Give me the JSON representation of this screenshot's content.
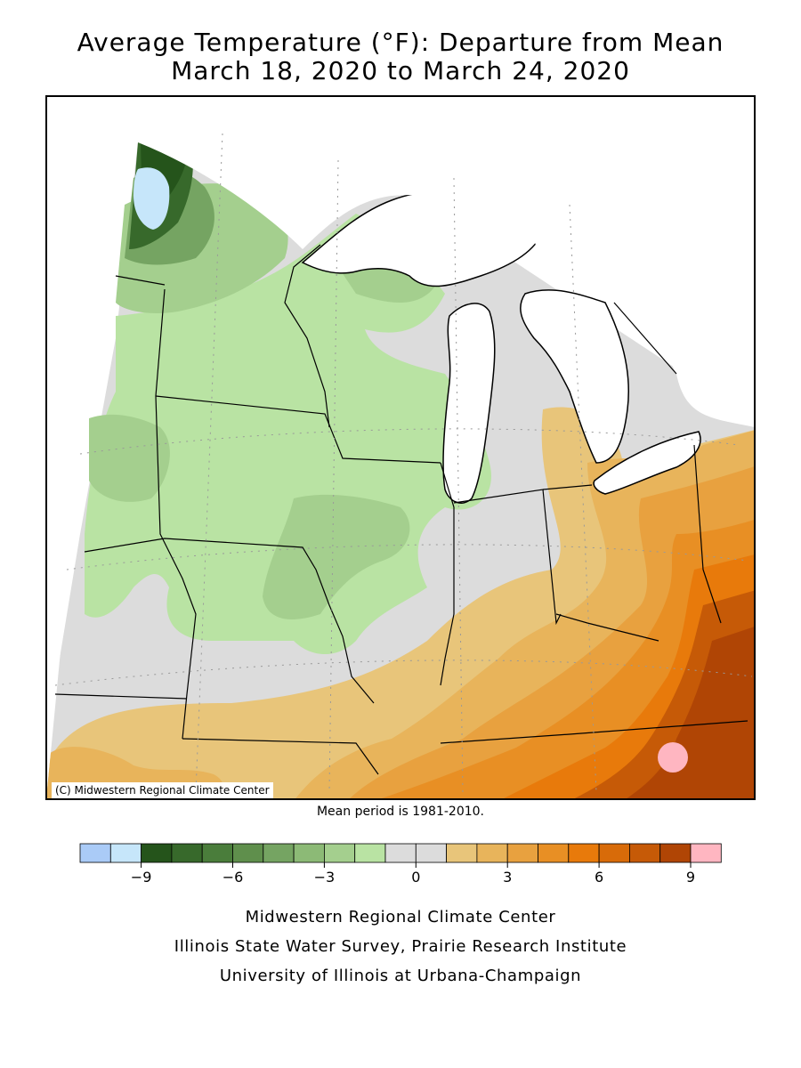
{
  "title": {
    "line1": "Average Temperature (°F): Departure from Mean",
    "line2": "March 18, 2020 to March 24, 2020"
  },
  "map": {
    "credit": "(C) Midwestern Regional Climate Center",
    "land_color": "#dcdcdc",
    "water_color": "#ffffff",
    "border_color": "#000000"
  },
  "mean_note": "Mean period is 1981-2010.",
  "legend": {
    "colors": [
      "#aacbf7",
      "#c6e6fa",
      "#25541b",
      "#37692b",
      "#4a7d3b",
      "#5f8f4c",
      "#75a462",
      "#8cba76",
      "#a4cf8e",
      "#b9e3a3",
      "#dcdcdc",
      "#dcdcdc",
      "#e8c57a",
      "#e8b45b",
      "#e8a13f",
      "#e88f24",
      "#e87a0b",
      "#d86b09",
      "#c65a07",
      "#b04505",
      "#ffb6c1"
    ],
    "ticks": [
      {
        "label": "−9",
        "value": -9
      },
      {
        "label": "−6",
        "value": -6
      },
      {
        "label": "−3",
        "value": -3
      },
      {
        "label": "0",
        "value": 0
      },
      {
        "label": "3",
        "value": 3
      },
      {
        "label": "6",
        "value": 6
      },
      {
        "label": "9",
        "value": 9
      }
    ]
  },
  "footer": {
    "line1": "Midwestern Regional Climate Center",
    "line2": "Illinois State Water Survey, Prairie Research Institute",
    "line3": "University of Illinois at Urbana-Champaign"
  }
}
